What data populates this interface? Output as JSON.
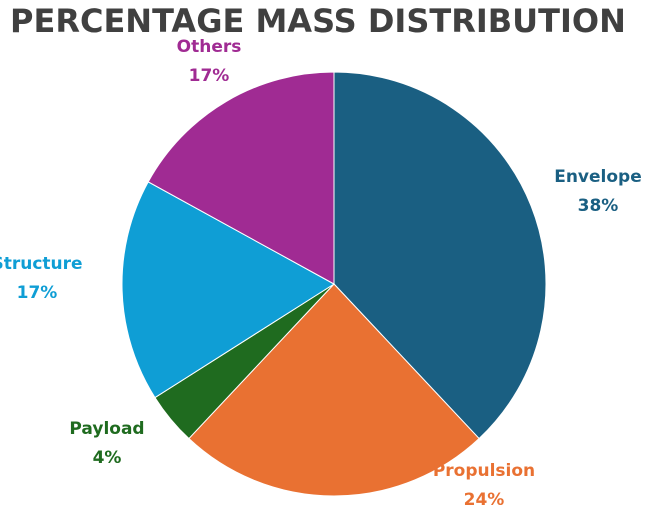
{
  "chart_data": {
    "type": "pie",
    "title": "PERCENTAGE MASS DISTRIBUTION",
    "slices": [
      {
        "name": "Envelope",
        "label": "Envelope",
        "value": 38,
        "value_label": "38%",
        "color": "#1a5f82"
      },
      {
        "name": "Propulsion",
        "label": "Propulsion",
        "value": 24,
        "value_label": "24%",
        "color": "#e97132"
      },
      {
        "name": "Payload",
        "label": "Payload",
        "value": 4,
        "value_label": "4%",
        "color": "#1f6b1f"
      },
      {
        "name": "Structure",
        "label": "Structure",
        "value": 17,
        "value_label": "17%",
        "color": "#0f9ed5"
      },
      {
        "name": "Others",
        "label": "Others",
        "value": 17,
        "value_label": "17%",
        "color": "#a02b93"
      }
    ],
    "start": "12 o'clock",
    "direction": "clockwise",
    "legend": "none",
    "data_labels": "outside"
  }
}
